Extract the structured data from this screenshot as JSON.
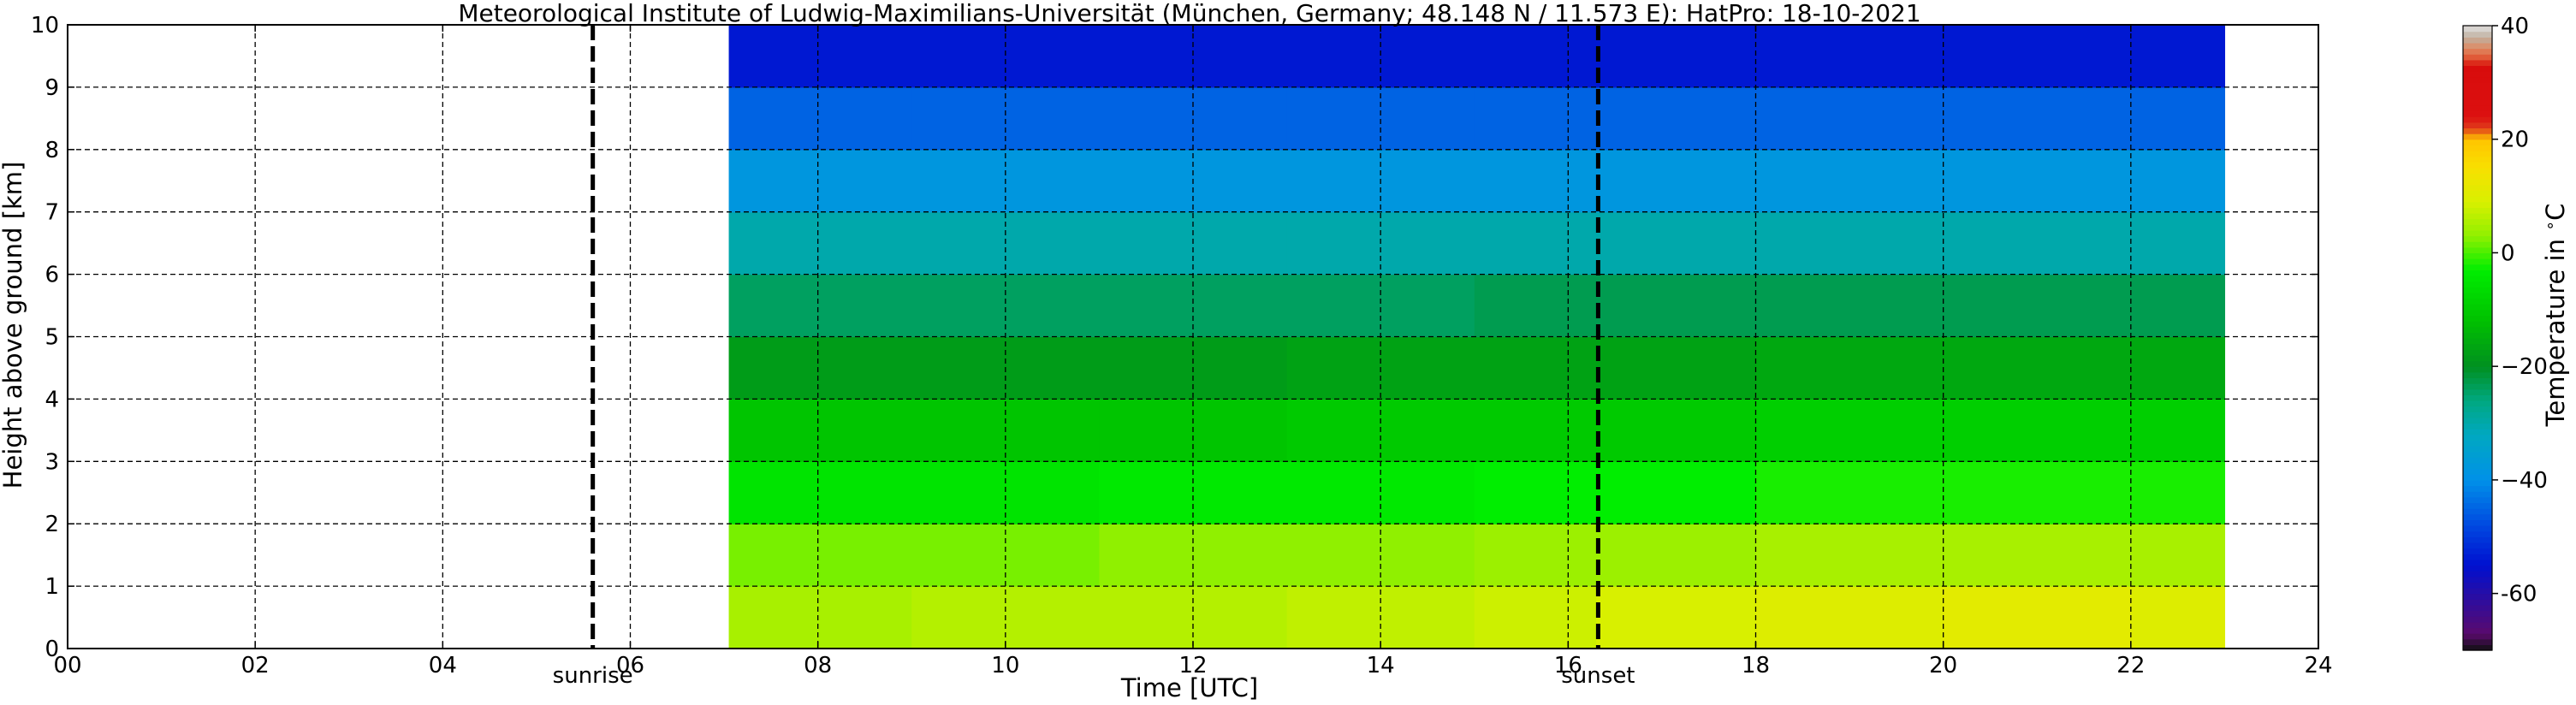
{
  "chart_data": {
    "type": "heatmap",
    "title": "Meteorological Institute of Ludwig-Maximilians-Universität (München, Germany; 48.148 N / 11.573 E):    HatPro: 18-10-2021",
    "xlabel": "Time [UTC]",
    "ylabel": "Height above ground [km]",
    "xlim": [
      0,
      24
    ],
    "ylim": [
      0,
      10
    ],
    "x_ticks": [
      "00",
      "02",
      "04",
      "06",
      "08",
      "10",
      "12",
      "14",
      "16",
      "18",
      "20",
      "22",
      "24"
    ],
    "y_ticks": [
      "0",
      "1",
      "2",
      "3",
      "4",
      "5",
      "6",
      "7",
      "8",
      "9",
      "10"
    ],
    "grid": true,
    "data_extent_hours": [
      7.05,
      23.0
    ],
    "height_levels_km": [
      0.5,
      1.5,
      2.5,
      3.5,
      4.5,
      5.5,
      6.5,
      7.5,
      8.5,
      9.5
    ],
    "time_bins_hours": [
      7.05,
      9.0,
      11.0,
      13.0,
      15.0,
      16.3,
      18.0,
      20.0,
      22.0
    ],
    "temperature_c": [
      [
        5,
        6,
        6,
        7,
        8,
        9,
        10,
        11,
        10
      ],
      [
        2,
        2,
        3,
        3,
        4,
        4,
        5,
        5,
        5
      ],
      [
        -5,
        -5,
        -4,
        -4,
        -3,
        -3,
        -2,
        -2,
        -2
      ],
      [
        -11,
        -11,
        -11,
        -10,
        -10,
        -10,
        -9,
        -9,
        -9
      ],
      [
        -18,
        -18,
        -18,
        -17,
        -17,
        -17,
        -16,
        -16,
        -16
      ],
      [
        -24,
        -24,
        -24,
        -24,
        -23,
        -23,
        -23,
        -23,
        -23
      ],
      [
        -30,
        -30,
        -30,
        -30,
        -30,
        -30,
        -30,
        -30,
        -30
      ],
      [
        -38,
        -38,
        -38,
        -38,
        -38,
        -38,
        -38,
        -38,
        -38
      ],
      [
        -45,
        -45,
        -45,
        -45,
        -45,
        -45,
        -45,
        -45,
        -45
      ],
      [
        -54,
        -54,
        -54,
        -54,
        -54,
        -54,
        -54,
        -54,
        -54
      ]
    ],
    "events": [
      {
        "label": "sunrise",
        "time_hours": 5.6
      },
      {
        "label": "sunset",
        "time_hours": 16.32
      }
    ],
    "colorbar": {
      "label": "Temperature in $^\\circ$C",
      "range": [
        -70,
        40
      ],
      "ticks": [
        "-60",
        "−40",
        "−20",
        "0",
        "20",
        "40"
      ],
      "stops": [
        {
          "t": -70,
          "color": "#101010"
        },
        {
          "t": -67,
          "color": "#5a0a6e"
        },
        {
          "t": -55,
          "color": "#0010d0"
        },
        {
          "t": -48,
          "color": "#0048e0"
        },
        {
          "t": -40,
          "color": "#0090e8"
        },
        {
          "t": -32,
          "color": "#00a8c0"
        },
        {
          "t": -26,
          "color": "#00a880"
        },
        {
          "t": -20,
          "color": "#009020"
        },
        {
          "t": -12,
          "color": "#00c000"
        },
        {
          "t": -3,
          "color": "#00ee00"
        },
        {
          "t": 3,
          "color": "#90f000"
        },
        {
          "t": 9,
          "color": "#d8f000"
        },
        {
          "t": 15,
          "color": "#f8e000"
        },
        {
          "t": 20,
          "color": "#ffc400"
        },
        {
          "t": 22,
          "color": "#e03c1c"
        },
        {
          "t": 24,
          "color": "#dc1010"
        },
        {
          "t": 33,
          "color": "#d80c0c"
        },
        {
          "t": 34,
          "color": "#e04a2a"
        },
        {
          "t": 36,
          "color": "#e08860"
        },
        {
          "t": 38,
          "color": "#c0b0a0"
        },
        {
          "t": 40,
          "color": "#e0e0e0"
        }
      ]
    }
  }
}
